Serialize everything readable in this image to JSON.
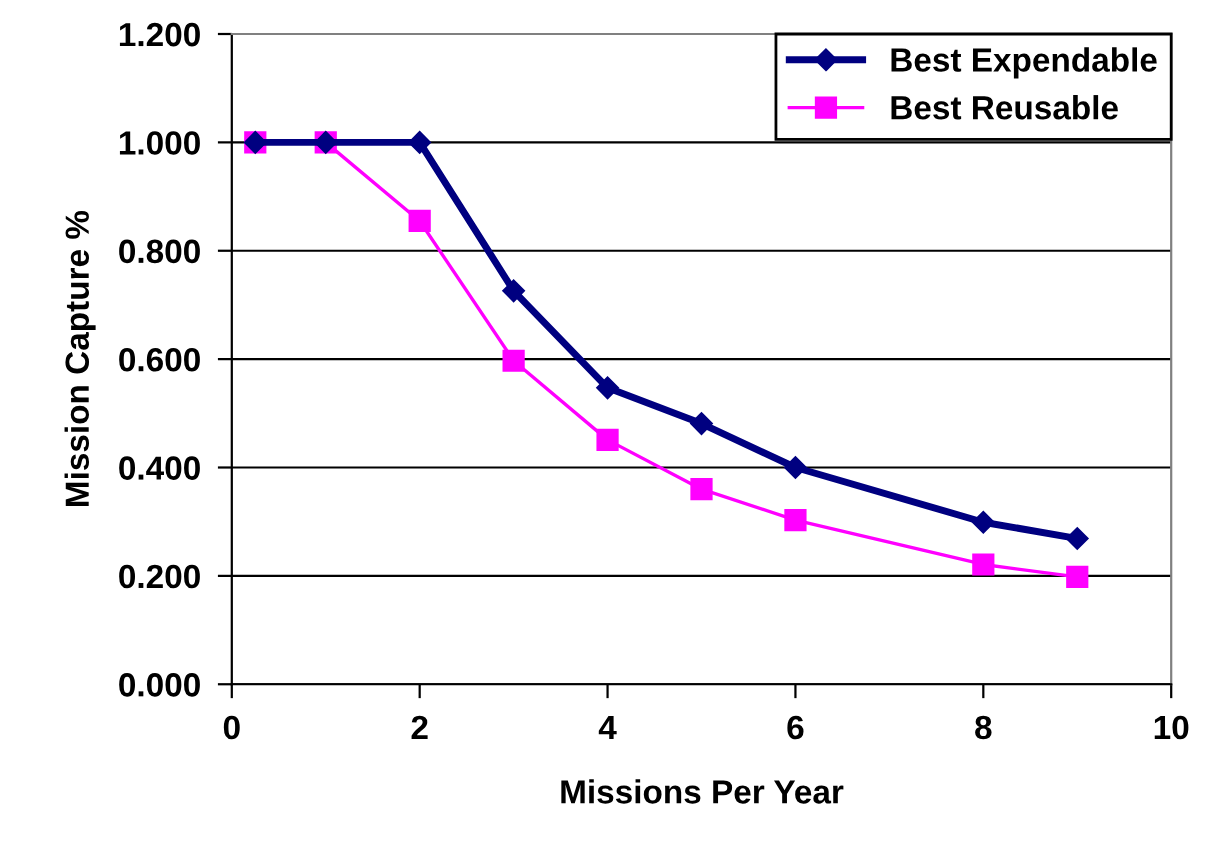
{
  "chart_data": {
    "type": "line",
    "xlabel": "Missions Per Year",
    "ylabel": "Mission Capture %",
    "series": [
      {
        "name": "Best Expendable",
        "color": "#000080",
        "marker": "diamond",
        "x": [
          0.25,
          1,
          2,
          3,
          4,
          5,
          6,
          8,
          9
        ],
        "values": [
          1.0,
          1.0,
          1.0,
          0.726,
          0.547,
          0.481,
          0.4,
          0.299,
          0.269
        ]
      },
      {
        "name": "Best Reusable",
        "color": "#ff00ff",
        "marker": "square",
        "x": [
          0.25,
          1,
          2,
          3,
          4,
          5,
          6,
          8,
          9
        ],
        "values": [
          1.0,
          1.0,
          0.855,
          0.597,
          0.451,
          0.36,
          0.303,
          0.221,
          0.198
        ]
      }
    ],
    "xlim": [
      0,
      10
    ],
    "xticks": [
      0,
      2,
      4,
      6,
      8,
      10
    ],
    "ylim": [
      0,
      1.2
    ],
    "yticks": [
      {
        "value": 0,
        "label": "0.000"
      },
      {
        "value": 0.2,
        "label": "0.200"
      },
      {
        "value": 0.4,
        "label": "0.400"
      },
      {
        "value": 0.6,
        "label": "0.600"
      },
      {
        "value": 0.8,
        "label": "0.800"
      },
      {
        "value": 1.0,
        "label": "1.000"
      },
      {
        "value": 1.2,
        "label": "1.200"
      }
    ],
    "grid": "y",
    "legend": "top right"
  }
}
